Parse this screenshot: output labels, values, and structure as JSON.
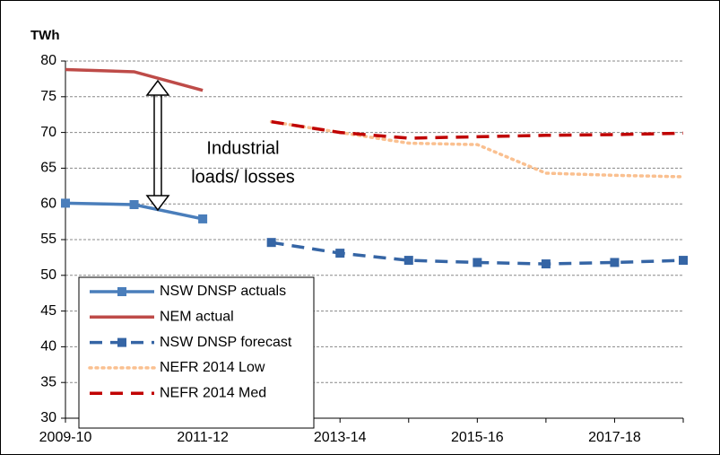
{
  "chart_data": {
    "type": "line",
    "ylabel": "TWh",
    "annotation": [
      "Industrial",
      "loads/ losses"
    ],
    "categories": [
      "2009-10",
      null,
      "2011-12",
      null,
      "2013-14",
      null,
      "2015-16",
      null,
      "2017-18",
      null
    ],
    "ylim": [
      30,
      80
    ],
    "yticks": [
      30,
      35,
      40,
      45,
      50,
      55,
      60,
      65,
      70,
      75,
      80
    ],
    "grid": true,
    "legend": "lower left",
    "series": [
      {
        "name": "NSW DNSP actuals",
        "color": "#4a7ebb",
        "dash": "solid",
        "marker": "square",
        "values": [
          60.1,
          59.9,
          57.9,
          null,
          null,
          null,
          null,
          null,
          null,
          null
        ]
      },
      {
        "name": "NEM actual",
        "color": "#be4b48",
        "dash": "solid",
        "marker": "none",
        "values": [
          78.8,
          78.5,
          75.9,
          null,
          null,
          null,
          null,
          null,
          null,
          null
        ]
      },
      {
        "name": "NSW DNSP forecast",
        "color": "#3565a5",
        "dash": "dashed",
        "marker": "square",
        "values": [
          null,
          null,
          null,
          54.6,
          53.1,
          52.1,
          51.8,
          51.6,
          51.8,
          52.1
        ]
      },
      {
        "name": "NEFR 2014 Low",
        "color": "#fac090",
        "dash": "dotted",
        "marker": "none",
        "values": [
          null,
          null,
          null,
          71.5,
          70.0,
          68.5,
          68.3,
          64.3,
          64.0,
          63.8
        ]
      },
      {
        "name": "NEFR 2014 Med",
        "color": "#c00000",
        "dash": "dashed",
        "marker": "none",
        "values": [
          null,
          null,
          null,
          71.5,
          70.0,
          69.2,
          69.4,
          69.6,
          69.7,
          69.9
        ]
      }
    ]
  }
}
